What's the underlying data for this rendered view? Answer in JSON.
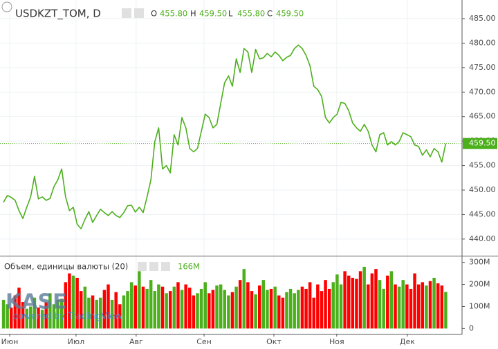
{
  "chart_data": [
    {
      "type": "line",
      "title": "USDKZT_TOM, D",
      "ohlc": [
        {
          "label": "O",
          "value": "455.80"
        },
        {
          "label": "H",
          "value": "459.50"
        },
        {
          "label": "L",
          "value": "455.80"
        },
        {
          "label": "C",
          "value": "459.50"
        }
      ],
      "values": [
        447.5,
        448.9,
        448.5,
        447.9,
        445.8,
        444.2,
        446.5,
        448.6,
        452.8,
        448.2,
        448.6,
        447.9,
        448.3,
        450.7,
        452.1,
        454.3,
        448.6,
        445.8,
        446.5,
        443.0,
        442.1,
        444.0,
        445.6,
        443.4,
        444.8,
        446.1,
        445.4,
        444.8,
        445.6,
        444.8,
        444.4,
        445.4,
        446.8,
        446.9,
        445.5,
        446.5,
        445.4,
        448.6,
        452.1,
        459.9,
        462.7,
        454.3,
        455.0,
        453.5,
        461.3,
        459.2,
        464.8,
        462.7,
        458.5,
        457.8,
        458.5,
        462.0,
        465.5,
        464.8,
        462.7,
        463.4,
        467.7,
        471.9,
        473.3,
        471.2,
        476.8,
        474.0,
        478.9,
        478.2,
        474.0,
        478.7,
        476.8,
        477.0,
        477.9,
        477.2,
        478.2,
        477.5,
        476.4,
        477.1,
        477.5,
        478.9,
        479.6,
        478.9,
        477.5,
        475.4,
        471.2,
        470.5,
        469.1,
        464.8,
        463.7,
        464.8,
        465.5,
        467.9,
        467.7,
        466.2,
        463.7,
        462.7,
        462.0,
        463.4,
        462.0,
        459.2,
        457.8,
        461.3,
        461.7,
        459.2,
        459.9,
        459.2,
        459.9,
        461.7,
        461.3,
        460.9,
        459.2,
        458.9,
        457.1,
        458.2,
        456.8,
        458.5,
        457.8,
        455.7,
        459.5
      ],
      "value_labels": [
        null,
        null,
        null,
        null,
        null,
        null,
        null,
        null,
        null,
        null,
        null,
        null,
        null,
        null,
        null,
        null,
        null,
        null,
        null,
        null,
        null,
        null,
        null,
        null,
        null,
        null,
        null,
        null,
        null,
        null,
        null,
        null,
        null,
        null,
        null,
        null,
        null,
        null,
        null,
        null,
        null,
        null,
        null,
        null,
        null,
        null,
        null,
        null,
        null,
        null,
        null,
        null,
        null,
        null,
        null,
        null,
        null,
        null,
        null,
        null,
        null,
        null,
        null,
        null,
        null,
        null,
        null,
        null,
        null,
        null,
        null,
        null,
        null,
        null,
        null,
        null,
        null,
        null,
        null,
        null,
        null,
        null,
        null,
        null,
        null,
        null,
        null,
        null,
        null,
        null,
        null,
        null,
        null,
        null,
        null,
        null,
        null,
        null,
        null,
        null,
        null,
        null,
        null,
        null,
        null,
        null,
        null,
        null,
        null,
        null,
        null,
        null,
        null,
        null,
        "459.50"
      ],
      "color": "#4caf1c",
      "ylim": [
        436.6,
        488.8
      ],
      "yticks": [
        {
          "value": 440,
          "label": "440.00"
        },
        {
          "value": 445,
          "label": "445.00"
        },
        {
          "value": 450,
          "label": "450.00"
        },
        {
          "value": 455,
          "label": "455.00"
        },
        {
          "value": 460,
          "label": "460.00"
        },
        {
          "value": 465,
          "label": "465.00"
        },
        {
          "value": 470,
          "label": "470.00"
        },
        {
          "value": 475,
          "label": "475.00"
        },
        {
          "value": 480,
          "label": "480.00"
        },
        {
          "value": 485,
          "label": "485.00"
        }
      ],
      "xlim": [
        -0.9,
        118.2
      ],
      "xticks": [
        {
          "value": 1.6,
          "label": "Июн"
        },
        {
          "value": 18.7,
          "label": "Июл"
        },
        {
          "value": 34.2,
          "label": "Авг"
        },
        {
          "value": 51.7,
          "label": "Сен"
        },
        {
          "value": 69.7,
          "label": "Окт"
        },
        {
          "value": 85.9,
          "label": "Ноя"
        },
        {
          "value": 104.1,
          "label": "Дек"
        }
      ],
      "grid": true
    },
    {
      "type": "bar",
      "title": "Объем, единицы валюты (20)",
      "values": [
        130,
        110,
        95,
        150,
        185,
        120,
        90,
        100,
        140,
        95,
        85,
        120,
        160,
        110,
        130,
        135,
        210,
        250,
        240,
        230,
        170,
        190,
        140,
        150,
        130,
        140,
        175,
        200,
        130,
        165,
        110,
        150,
        170,
        210,
        195,
        260,
        190,
        180,
        220,
        170,
        200,
        190,
        160,
        170,
        190,
        210,
        175,
        200,
        185,
        150,
        160,
        180,
        210,
        160,
        175,
        195,
        200,
        175,
        150,
        165,
        190,
        220,
        270,
        210,
        170,
        155,
        195,
        220,
        175,
        180,
        190,
        150,
        140,
        165,
        180,
        160,
        175,
        190,
        180,
        210,
        140,
        200,
        170,
        220,
        180,
        210,
        245,
        200,
        260,
        240,
        230,
        225,
        260,
        280,
        200,
        250,
        270,
        220,
        180,
        240,
        260,
        200,
        190,
        220,
        200,
        180,
        250,
        200,
        210,
        195,
        215,
        230,
        205,
        195,
        166
      ],
      "value_labels": [
        null,
        null,
        null,
        null,
        null,
        null,
        null,
        null,
        null,
        null,
        null,
        null,
        null,
        null,
        null,
        null,
        null,
        null,
        null,
        null,
        null,
        null,
        null,
        null,
        null,
        null,
        null,
        null,
        null,
        null,
        null,
        null,
        null,
        null,
        null,
        null,
        null,
        null,
        null,
        null,
        null,
        null,
        null,
        null,
        null,
        null,
        null,
        null,
        null,
        null,
        null,
        null,
        null,
        null,
        null,
        null,
        null,
        null,
        null,
        null,
        null,
        null,
        null,
        null,
        null,
        null,
        null,
        null,
        null,
        null,
        null,
        null,
        null,
        null,
        null,
        null,
        null,
        null,
        null,
        null,
        null,
        null,
        null,
        null,
        null,
        null,
        null,
        null,
        null,
        null,
        null,
        null,
        null,
        null,
        null,
        null,
        null,
        null,
        null,
        null,
        null,
        null,
        null,
        null,
        null,
        null,
        null,
        null,
        null,
        null,
        null,
        null,
        null,
        null,
        "166M"
      ],
      "colors": {
        "up": "#4caf1c",
        "down": "#ff0000"
      },
      "ylim": [
        -27,
        327
      ],
      "yticks": [
        0,
        {
          "value": 100,
          "label": "100M"
        },
        {
          "value": 200,
          "label": "200M"
        },
        {
          "value": 300,
          "label": "300M"
        }
      ]
    }
  ],
  "watermark": [
    "KASE",
    "powered by TradingView"
  ]
}
